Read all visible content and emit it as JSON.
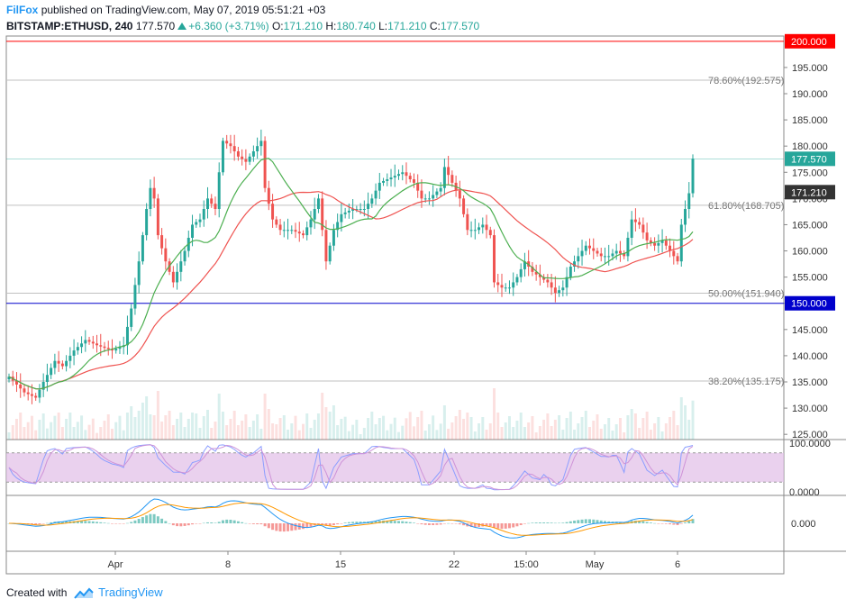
{
  "header": {
    "publisher": "FilFox",
    "published_text": "published on TradingView.com, May 07, 2019 05:51:21 +03",
    "symbol": "BITSTAMP:ETHUSD, 240",
    "last": "177.570",
    "change": "+6.360 (+3.71%)",
    "o_label": "O:",
    "o_value": "171.210",
    "h_label": "H:",
    "h_value": "180.740",
    "l_label": "L:",
    "l_value": "171.210",
    "c_label": "C:",
    "c_value": "177.570"
  },
  "footer": {
    "created_with": "Created with",
    "brand": "TradingView"
  },
  "colors": {
    "up": "#26a69a",
    "down": "#ef5350",
    "ma_slow": "#ef5350",
    "ma_fast": "#4caf50",
    "stoch_band": "#e1bee7",
    "macd_line": "#2196f3",
    "signal_line": "#ff9800",
    "hline_200": "#ff0000",
    "hline_150": "#0000cc",
    "fib": "#c0c0c0"
  },
  "chart_data": {
    "type": "candlestick",
    "symbol": "BITSTAMP:ETHUSD",
    "timeframe": "240",
    "x_ticks": [
      "Apr",
      "8",
      "15",
      "22",
      "15:00",
      "May",
      "6"
    ],
    "price_axis_ticks": [
      125,
      130,
      135,
      140,
      145,
      150,
      155,
      160,
      165,
      170,
      175,
      180,
      185,
      190,
      195
    ],
    "ylim": [
      124,
      201
    ],
    "horizontal_levels": [
      {
        "label": "200.000",
        "value": 200.0
      },
      {
        "label": "150.000",
        "value": 150.0
      }
    ],
    "fib_levels": [
      {
        "label": "78.60%(192.575)",
        "value": 192.575
      },
      {
        "label": "61.80%(168.705)",
        "value": 168.705
      },
      {
        "label": "50.00%(151.940)",
        "value": 151.94
      },
      {
        "label": "38.20%(135.175)",
        "value": 135.175
      }
    ],
    "price_tags": [
      {
        "label": "177.570",
        "value": 177.57,
        "style": "last"
      },
      {
        "label": "171.210",
        "value": 171.21,
        "style": "open"
      }
    ],
    "close_path": [
      [
        0,
        136
      ],
      [
        4,
        133
      ],
      [
        7,
        132
      ],
      [
        9,
        135
      ],
      [
        12,
        139
      ],
      [
        14,
        138
      ],
      [
        17,
        141
      ],
      [
        20,
        143
      ],
      [
        23,
        142
      ],
      [
        27,
        141
      ],
      [
        30,
        142
      ],
      [
        32,
        149
      ],
      [
        34,
        158
      ],
      [
        36,
        168
      ],
      [
        37,
        172
      ],
      [
        38,
        170
      ],
      [
        39,
        163
      ],
      [
        41,
        158
      ],
      [
        43,
        154
      ],
      [
        46,
        160
      ],
      [
        48,
        165
      ],
      [
        50,
        166
      ],
      [
        52,
        170
      ],
      [
        54,
        168
      ],
      [
        55,
        175
      ],
      [
        56,
        181
      ],
      [
        58,
        180
      ],
      [
        60,
        178
      ],
      [
        62,
        177
      ],
      [
        64,
        179
      ],
      [
        66,
        181
      ],
      [
        67,
        172
      ],
      [
        69,
        166
      ],
      [
        71,
        164
      ],
      [
        74,
        164
      ],
      [
        77,
        163
      ],
      [
        79,
        166
      ],
      [
        81,
        170
      ],
      [
        83,
        158
      ],
      [
        85,
        164
      ],
      [
        87,
        167
      ],
      [
        90,
        168
      ],
      [
        93,
        168
      ],
      [
        95,
        170
      ],
      [
        97,
        173
      ],
      [
        100,
        174
      ],
      [
        103,
        175
      ],
      [
        106,
        173
      ],
      [
        108,
        170
      ],
      [
        110,
        170
      ],
      [
        113,
        172
      ],
      [
        114,
        176
      ],
      [
        116,
        173
      ],
      [
        118,
        170
      ],
      [
        120,
        164
      ],
      [
        122,
        164
      ],
      [
        124,
        165
      ],
      [
        126,
        163
      ],
      [
        127,
        154
      ],
      [
        129,
        153
      ],
      [
        131,
        153
      ],
      [
        133,
        155
      ],
      [
        135,
        158
      ],
      [
        137,
        156
      ],
      [
        139,
        155
      ],
      [
        141,
        154
      ],
      [
        143,
        152
      ],
      [
        145,
        153
      ],
      [
        147,
        157
      ],
      [
        149,
        159
      ],
      [
        151,
        161
      ],
      [
        153,
        160
      ],
      [
        155,
        159
      ],
      [
        157,
        159
      ],
      [
        159,
        160
      ],
      [
        161,
        159
      ],
      [
        163,
        166
      ],
      [
        165,
        165
      ],
      [
        167,
        162
      ],
      [
        169,
        161
      ],
      [
        171,
        162
      ],
      [
        173,
        160
      ],
      [
        175,
        158
      ],
      [
        176,
        165
      ],
      [
        178,
        171
      ],
      [
        179,
        177.57
      ]
    ],
    "ma_slow_path": [
      [
        0,
        137
      ],
      [
        10,
        136
      ],
      [
        20,
        134.5
      ],
      [
        30,
        132
      ],
      [
        40,
        129.5
      ],
      [
        50,
        127.5
      ],
      [
        60,
        125.5
      ],
      [
        70,
        122.5
      ],
      [
        80,
        117.5
      ],
      [
        90,
        113
      ],
      [
        100,
        109
      ],
      [
        110,
        104.5
      ],
      [
        125,
        98.5
      ],
      [
        140,
        94.5
      ],
      [
        160,
        91.5
      ],
      [
        180,
        87
      ],
      [
        200,
        79
      ],
      [
        220,
        67
      ],
      [
        240,
        53
      ],
      [
        260,
        42
      ],
      [
        280,
        33
      ],
      [
        300,
        24
      ],
      [
        305,
        22
      ],
      [
        315,
        22
      ],
      [
        330,
        24
      ],
      [
        350,
        27
      ],
      [
        370,
        33
      ],
      [
        390,
        38
      ],
      [
        410,
        42
      ],
      [
        430,
        44
      ],
      [
        450,
        46
      ],
      [
        470,
        46
      ],
      [
        490,
        43
      ],
      [
        510,
        40
      ],
      [
        530,
        37
      ],
      [
        550,
        40
      ],
      [
        570,
        47
      ],
      [
        590,
        56
      ],
      [
        610,
        65
      ],
      [
        630,
        73
      ],
      [
        650,
        80
      ],
      [
        665,
        84
      ],
      [
        680,
        84
      ],
      [
        700,
        82
      ],
      [
        720,
        81
      ],
      [
        740,
        79
      ],
      [
        755,
        78
      ],
      [
        765,
        77
      ]
    ],
    "ma_fast_path": [
      [
        0,
        134
      ],
      [
        10,
        133.5
      ],
      [
        20,
        133
      ],
      [
        30,
        131
      ],
      [
        40,
        128.5
      ],
      [
        50,
        126.5
      ],
      [
        60,
        124.5
      ],
      [
        70,
        121.5
      ],
      [
        80,
        116
      ],
      [
        90,
        111
      ],
      [
        100,
        106
      ],
      [
        110,
        101.5
      ],
      [
        120,
        97
      ],
      [
        130,
        93
      ],
      [
        140,
        89.5
      ],
      [
        150,
        85
      ],
      [
        160,
        79
      ],
      [
        170,
        71
      ],
      [
        180,
        62
      ],
      [
        190,
        53
      ],
      [
        200,
        45
      ],
      [
        210,
        38
      ],
      [
        220,
        32
      ],
      [
        230,
        27
      ],
      [
        240,
        22.5
      ],
      [
        250,
        19
      ],
      [
        260,
        16
      ],
      [
        270,
        13
      ],
      [
        280,
        10
      ],
      [
        290,
        7
      ],
      [
        300,
        4
      ],
      [
        310,
        2
      ],
      [
        320,
        0
      ],
      [
        340,
        -2
      ],
      [
        360,
        -3
      ],
      [
        380,
        -4
      ],
      [
        400,
        -4
      ],
      [
        420,
        -2
      ],
      [
        440,
        1
      ],
      [
        460,
        4
      ],
      [
        480,
        8
      ],
      [
        500,
        12
      ],
      [
        520,
        16
      ],
      [
        540,
        20
      ],
      [
        560,
        24
      ],
      [
        580,
        27
      ],
      [
        600,
        30
      ],
      [
        620,
        32
      ],
      [
        640,
        33
      ],
      [
        660,
        33
      ],
      [
        680,
        32
      ],
      [
        700,
        30
      ],
      [
        720,
        27
      ],
      [
        740,
        24
      ],
      [
        755,
        21
      ],
      [
        765,
        19
      ]
    ],
    "stoch_ylim": [
      0,
      100
    ],
    "stoch_band": [
      20,
      80
    ],
    "stoch_ticks": [
      "100.0000",
      "0.0000"
    ],
    "macd_ticks": [
      "0.000"
    ]
  }
}
